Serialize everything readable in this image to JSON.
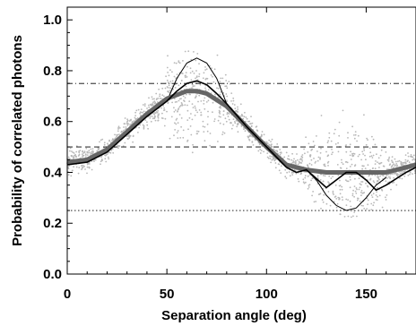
{
  "chart_data": {
    "type": "line",
    "title": "",
    "xlabel": "Separation angle (deg)",
    "ylabel": "Probability of correlated photons",
    "xlim": [
      0,
      175
    ],
    "ylim": [
      0,
      1.05
    ],
    "xticks": [
      0,
      50,
      100,
      150
    ],
    "xtick_labels": [
      "0",
      "50",
      "100",
      "150"
    ],
    "yticks": [
      0.0,
      0.2,
      0.4,
      0.6,
      0.8,
      1.0
    ],
    "ytick_labels": [
      "0.0",
      "0.2",
      "0.4",
      "0.6",
      "0.8",
      "1.0"
    ],
    "grid": false,
    "legend": "none",
    "reference_lines": [
      {
        "style": "dash-dot",
        "y": 0.75,
        "color": "#000000"
      },
      {
        "style": "dashed",
        "y": 0.5,
        "color": "#000000"
      },
      {
        "style": "dotted",
        "y": 0.25,
        "color": "#000000"
      }
    ],
    "series": [
      {
        "style": "thick-gray",
        "color": "#666666",
        "x": [
          0,
          10,
          20,
          30,
          40,
          50,
          60,
          65,
          70,
          80,
          90,
          100,
          110,
          120,
          130,
          140,
          150,
          160,
          170,
          175
        ],
        "values": [
          0.44,
          0.45,
          0.49,
          0.56,
          0.63,
          0.69,
          0.72,
          0.72,
          0.71,
          0.66,
          0.58,
          0.5,
          0.43,
          0.41,
          0.4,
          0.4,
          0.4,
          0.4,
          0.42,
          0.43
        ]
      },
      {
        "style": "solid-black",
        "color": "#000000",
        "x": [
          0,
          10,
          20,
          30,
          40,
          50,
          55,
          60,
          65,
          70,
          75,
          80,
          90,
          100,
          110,
          115,
          120,
          123,
          130,
          135,
          140,
          145,
          150,
          155,
          160,
          170,
          175
        ],
        "values": [
          0.43,
          0.44,
          0.48,
          0.55,
          0.62,
          0.68,
          0.72,
          0.75,
          0.76,
          0.745,
          0.71,
          0.67,
          0.58,
          0.5,
          0.42,
          0.4,
          0.41,
          0.39,
          0.34,
          0.37,
          0.4,
          0.4,
          0.37,
          0.33,
          0.35,
          0.4,
          0.42
        ]
      },
      {
        "style": "envelope-thin",
        "color": "#000000",
        "x": [
          50,
          55,
          60,
          65,
          70,
          75,
          80
        ],
        "values": [
          0.68,
          0.77,
          0.83,
          0.85,
          0.83,
          0.77,
          0.67
        ]
      },
      {
        "style": "envelope-thin",
        "color": "#000000",
        "x": [
          120,
          125,
          130,
          135,
          140,
          145,
          150,
          155,
          160
        ],
        "values": [
          0.41,
          0.37,
          0.31,
          0.27,
          0.25,
          0.26,
          0.3,
          0.35,
          0.38
        ]
      },
      {
        "style": "scatter-cloud",
        "color": "#b8b8b8",
        "note": "dense gray scatter of simulated values around the curves"
      }
    ]
  }
}
